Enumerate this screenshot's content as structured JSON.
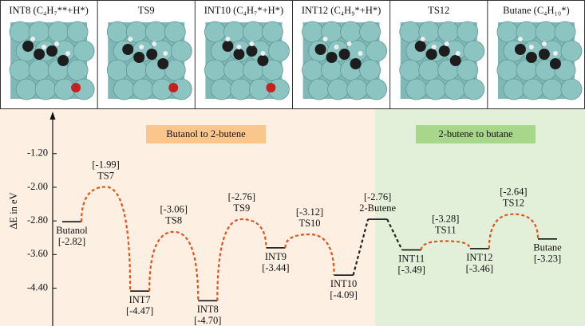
{
  "top_panel": {
    "columns": [
      "INT8 (C₄H₇**+H*)",
      "TS9",
      "INT10 (C₄H₇*+H*)",
      "INT12 (C₄H₉*+H*)",
      "TS12",
      "Butane (C₄H₁₀*)"
    ]
  },
  "chart_data": {
    "type": "energy-profile",
    "ylabel": "ΔE in eV",
    "ylim": [
      -5.3,
      -0.2
    ],
    "yticks": [
      {
        "value": -1.2,
        "label": "-1.20"
      },
      {
        "value": -2,
        "label": "-2.00"
      },
      {
        "value": -2.8,
        "label": "-2.80"
      },
      {
        "value": -3.6,
        "label": "-3.60"
      },
      {
        "value": -4.4,
        "label": "-4.40"
      }
    ],
    "regions": [
      {
        "label": "Butanol to 2-butene",
        "color": "#fdefe2",
        "box_color": "#fbc68c"
      },
      {
        "label": "2-butene to butane",
        "color": "#e2f0d9",
        "box_color": "#a8d68b"
      }
    ],
    "categories": [
      "Butanol",
      "TS7",
      "INT7",
      "TS8",
      "INT8",
      "TS9",
      "INT9",
      "TS10",
      "INT10",
      "2-Butene",
      "INT11",
      "TS11",
      "INT12",
      "TS12",
      "Butane"
    ],
    "values": [
      -2.82,
      -1.99,
      -4.47,
      -3.06,
      -4.7,
      -2.76,
      -3.44,
      -3.12,
      -4.09,
      -2.76,
      -3.49,
      -3.28,
      -3.46,
      -2.64,
      -3.23
    ],
    "value_labels": [
      "[-2.82]",
      "[-1.99]",
      "[-4.47]",
      "[-3.06]",
      "[-4.70]",
      "[-2.76]",
      "[-3.44]",
      "[-3.12]",
      "[-4.09]",
      "[-2.76]",
      "[-3.49]",
      "[-3.28]",
      "[-3.46]",
      "[-2.64]",
      "[-3.23]"
    ],
    "color": "#e2531b",
    "connector_color": "#222222"
  }
}
